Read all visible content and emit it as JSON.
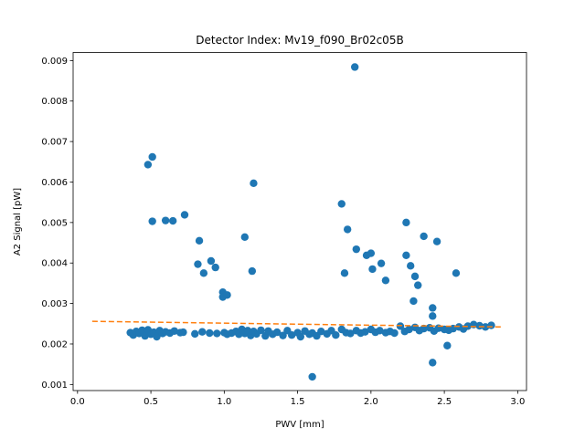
{
  "chart_data": {
    "type": "scatter",
    "title": "Detector Index: Mv19_f090_Br02c05B",
    "xlabel": "PWV [mm]",
    "ylabel": "A2 Signal [pW]",
    "xlim": [
      -0.03,
      3.06
    ],
    "ylim": [
      0.00085,
      0.0092
    ],
    "xticks": [
      0.0,
      0.5,
      1.0,
      1.5,
      2.0,
      2.5,
      3.0
    ],
    "xtick_labels": [
      "0.0",
      "0.5",
      "1.0",
      "1.5",
      "2.0",
      "2.5",
      "3.0"
    ],
    "yticks": [
      0.001,
      0.002,
      0.003,
      0.004,
      0.005,
      0.006,
      0.007,
      0.008,
      0.009
    ],
    "ytick_labels": [
      "0.001",
      "0.002",
      "0.003",
      "0.004",
      "0.005",
      "0.006",
      "0.007",
      "0.008",
      "0.009"
    ],
    "grid": false,
    "series": [
      {
        "name": "data",
        "kind": "scatter",
        "color": "#1f77b4",
        "x": [
          0.36,
          0.38,
          0.4,
          0.42,
          0.44,
          0.46,
          0.48,
          0.5,
          0.52,
          0.54,
          0.56,
          0.58,
          0.6,
          0.63,
          0.66,
          0.7,
          0.72,
          0.8,
          0.85,
          0.9,
          0.95,
          1.0,
          1.02,
          1.05,
          1.08,
          1.1,
          1.12,
          1.14,
          1.16,
          1.18,
          1.2,
          1.22,
          1.25,
          1.28,
          1.3,
          1.33,
          1.36,
          1.4,
          1.43,
          1.46,
          1.5,
          1.52,
          1.55,
          1.58,
          1.6,
          1.63,
          1.66,
          1.7,
          1.73,
          1.76,
          1.8,
          1.83,
          1.86,
          1.9,
          1.93,
          1.96,
          2.0,
          2.03,
          2.06,
          2.1,
          2.13,
          2.16,
          2.2,
          2.23,
          2.26,
          2.3,
          2.33,
          2.36,
          2.4,
          2.43,
          2.46,
          2.5,
          2.53,
          2.56,
          2.6,
          2.63,
          2.66,
          2.7,
          2.74,
          2.78,
          2.82,
          0.48,
          0.51,
          0.51,
          0.6,
          0.65,
          0.73,
          0.82,
          0.83,
          0.86,
          0.91,
          0.94,
          0.99,
          0.99,
          1.02,
          1.14,
          1.19,
          1.2,
          1.8,
          1.82,
          1.84,
          1.89,
          1.9,
          1.97,
          2.0,
          2.01,
          2.07,
          2.1,
          2.24,
          2.24,
          2.27,
          2.29,
          2.3,
          2.32,
          2.36,
          2.42,
          2.42,
          2.45,
          2.52,
          2.58,
          1.6,
          2.42
        ],
        "y": [
          0.00228,
          0.00222,
          0.00231,
          0.00226,
          0.00234,
          0.0022,
          0.00235,
          0.00224,
          0.00229,
          0.00218,
          0.00233,
          0.00226,
          0.0023,
          0.00227,
          0.00232,
          0.00228,
          0.00229,
          0.00225,
          0.0023,
          0.00227,
          0.00226,
          0.00228,
          0.00224,
          0.00227,
          0.00231,
          0.00224,
          0.00236,
          0.00226,
          0.00233,
          0.00221,
          0.00231,
          0.00225,
          0.00234,
          0.0022,
          0.00232,
          0.00224,
          0.00229,
          0.00221,
          0.00233,
          0.00222,
          0.00228,
          0.00218,
          0.00232,
          0.00224,
          0.00227,
          0.0022,
          0.00231,
          0.00225,
          0.00233,
          0.00222,
          0.00236,
          0.00228,
          0.00226,
          0.00233,
          0.00227,
          0.0023,
          0.00236,
          0.00229,
          0.00233,
          0.00228,
          0.00231,
          0.00227,
          0.00244,
          0.00231,
          0.00236,
          0.00241,
          0.00233,
          0.00238,
          0.0024,
          0.00232,
          0.00239,
          0.00236,
          0.00234,
          0.00238,
          0.00242,
          0.00237,
          0.00244,
          0.00248,
          0.00245,
          0.00242,
          0.00246,
          0.00643,
          0.00662,
          0.00503,
          0.00505,
          0.00504,
          0.00519,
          0.00397,
          0.00455,
          0.00375,
          0.00405,
          0.00389,
          0.00328,
          0.00316,
          0.00321,
          0.00464,
          0.0038,
          0.00597,
          0.00546,
          0.00375,
          0.00483,
          0.00884,
          0.00434,
          0.00419,
          0.00424,
          0.00385,
          0.00399,
          0.00357,
          0.005,
          0.00419,
          0.00393,
          0.00306,
          0.00367,
          0.00345,
          0.00466,
          0.00289,
          0.00269,
          0.00453,
          0.00196,
          0.00375,
          0.00119,
          0.00154
        ]
      },
      {
        "name": "fit",
        "kind": "line",
        "style": "dashed",
        "color": "#ff7f0e",
        "x": [
          0.1,
          2.9
        ],
        "y": [
          0.00256,
          0.00242
        ]
      }
    ]
  }
}
